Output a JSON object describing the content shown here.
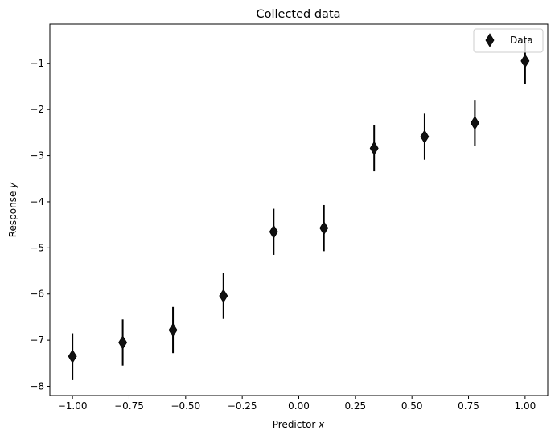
{
  "chart_data": {
    "type": "scatter",
    "title": "Collected data",
    "xlabel_main": "Predictor ",
    "xlabel_var": "x",
    "ylabel_main": "Response ",
    "ylabel_var": "y",
    "xlim": [
      -1.1,
      1.1
    ],
    "ylim": [
      -8.2,
      -0.15
    ],
    "xticks": [
      -1.0,
      -0.75,
      -0.5,
      -0.25,
      0.0,
      0.25,
      0.5,
      0.75,
      1.0
    ],
    "xtick_labels": [
      "−1.00",
      "−0.75",
      "−0.50",
      "−0.25",
      "0.00",
      "0.25",
      "0.50",
      "0.75",
      "1.00"
    ],
    "yticks": [
      -8,
      -7,
      -6,
      -5,
      -4,
      -3,
      -2,
      -1
    ],
    "ytick_labels": [
      "−8",
      "−7",
      "−6",
      "−5",
      "−4",
      "−3",
      "−2",
      "−1"
    ],
    "grid": false,
    "legend_position": "top-right",
    "series": [
      {
        "name": "Data",
        "marker": "thin-diamond",
        "color": "#000000",
        "x": [
          -1.0,
          -0.778,
          -0.556,
          -0.333,
          -0.111,
          0.111,
          0.333,
          0.556,
          0.778,
          1.0
        ],
        "y": [
          -7.35,
          -7.05,
          -6.78,
          -6.04,
          -4.65,
          -4.57,
          -2.84,
          -2.59,
          -2.29,
          -0.95
        ],
        "yerr": 0.5
      }
    ]
  }
}
